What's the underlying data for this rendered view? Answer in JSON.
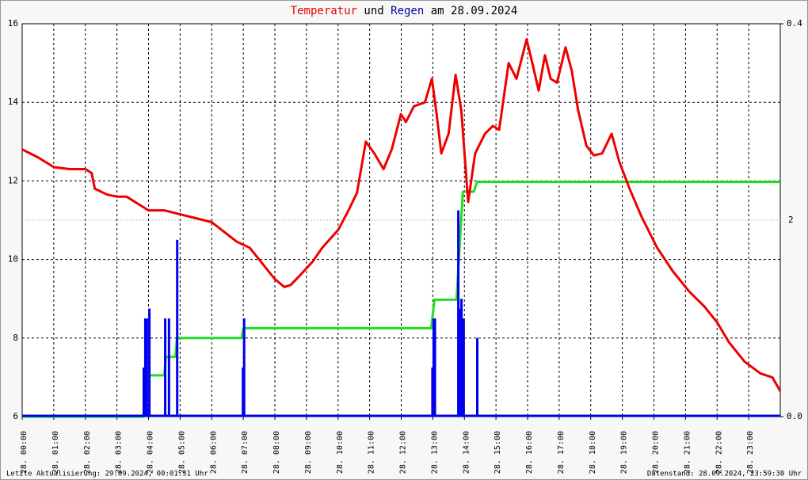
{
  "chart_data": {
    "type": "line",
    "title": [
      "Temperatur",
      "und",
      "Regen",
      "am 28.09.2024"
    ],
    "title_colors": [
      "#ee0000",
      "#000000",
      "#000099",
      "#000000"
    ],
    "footer_left": "Letzte Aktualisierung: 29.09.2024, 00:01:31 Uhr",
    "footer_right": "Datenstand: 28.09.2024, 23:59:30 Uhr",
    "xlim": [
      0,
      24
    ],
    "xticks": [
      {
        "value": 0,
        "label": "28. 00:00"
      },
      {
        "value": 1,
        "label": "28. 01:00"
      },
      {
        "value": 2,
        "label": "28. 02:00"
      },
      {
        "value": 3,
        "label": "28. 03:00"
      },
      {
        "value": 4,
        "label": "28. 04:00"
      },
      {
        "value": 5,
        "label": "28. 05:00"
      },
      {
        "value": 6,
        "label": "28. 06:00"
      },
      {
        "value": 7,
        "label": "28. 07:00"
      },
      {
        "value": 8,
        "label": "28. 08:00"
      },
      {
        "value": 9,
        "label": "28. 09:00"
      },
      {
        "value": 10,
        "label": "28. 10:00"
      },
      {
        "value": 11,
        "label": "28. 11:00"
      },
      {
        "value": 12,
        "label": "28. 12:00"
      },
      {
        "value": 13,
        "label": "28. 13:00"
      },
      {
        "value": 14,
        "label": "28. 14:00"
      },
      {
        "value": 15,
        "label": "28. 15:00"
      },
      {
        "value": 16,
        "label": "28. 16:00"
      },
      {
        "value": 17,
        "label": "28. 17:00"
      },
      {
        "value": 18,
        "label": "28. 18:00"
      },
      {
        "value": 19,
        "label": "28. 19:00"
      },
      {
        "value": 20,
        "label": "28. 20:00"
      },
      {
        "value": 21,
        "label": "28. 21:00"
      },
      {
        "value": 22,
        "label": "28. 22:00"
      },
      {
        "value": 23,
        "label": "28. 23:00"
      }
    ],
    "ylim": [
      6,
      16
    ],
    "yticks": [
      6,
      8,
      10,
      12,
      14,
      16
    ],
    "y2lim": [
      0,
      0.4
    ],
    "y2ticks": [
      {
        "value": 0,
        "label": "0.0"
      },
      {
        "value": 0.4,
        "label": "0.4"
      }
    ],
    "y3lim": [
      0,
      4
    ],
    "y3ticks": [
      2
    ],
    "y3color": "#22dd22",
    "grid": true,
    "series": [
      {
        "type": "line",
        "axis": "y",
        "color": "#ee0000",
        "x": [
          0,
          0.5,
          1,
          1.5,
          2,
          2.2,
          2.3,
          2.7,
          3,
          3.3,
          3.5,
          3.8,
          4,
          4.5,
          5,
          5.5,
          6,
          6.4,
          6.8,
          7.2,
          7.5,
          7.8,
          8,
          8.3,
          8.5,
          8.8,
          9.2,
          9.5,
          10,
          10.3,
          10.6,
          10.88,
          11.15,
          11.44,
          11.7,
          11.99,
          12.15,
          12.4,
          12.75,
          12.97,
          13.12,
          13.27,
          13.5,
          13.72,
          13.9,
          14.12,
          14.34,
          14.65,
          14.9,
          15.1,
          15.4,
          15.65,
          15.97,
          16.15,
          16.35,
          16.55,
          16.73,
          16.93,
          17.2,
          17.4,
          17.6,
          17.86,
          18.1,
          18.36,
          18.66,
          18.9,
          19.23,
          19.6,
          20.1,
          20.6,
          21.1,
          21.6,
          22,
          22.37,
          22.87,
          23.37,
          23.75,
          24
        ],
        "values": [
          12.8,
          12.6,
          12.35,
          12.3,
          12.3,
          12.2,
          11.8,
          11.65,
          11.6,
          11.6,
          11.5,
          11.35,
          11.25,
          11.25,
          11.15,
          11.05,
          10.95,
          10.7,
          10.45,
          10.3,
          10,
          9.7,
          9.5,
          9.3,
          9.35,
          9.6,
          9.95,
          10.3,
          10.75,
          11.2,
          11.7,
          13.0,
          12.7,
          12.3,
          12.8,
          13.7,
          13.5,
          13.9,
          14.0,
          14.6,
          13.7,
          12.7,
          13.2,
          14.7,
          13.8,
          11.46,
          12.7,
          13.2,
          13.4,
          13.3,
          15.0,
          14.6,
          15.6,
          15.0,
          14.3,
          15.2,
          14.6,
          14.5,
          15.4,
          14.8,
          13.8,
          12.9,
          12.65,
          12.7,
          13.2,
          12.5,
          11.8,
          11.1,
          10.3,
          9.7,
          9.2,
          8.8,
          8.4,
          7.9,
          7.4,
          7.1,
          7.0,
          6.65
        ]
      },
      {
        "type": "bar",
        "axis": "y2",
        "color": "#0000ee",
        "x": [
          3.81,
          3.86,
          3.91,
          3.99,
          4.49,
          4.61,
          4.87,
          6.95,
          6.99,
          12.95,
          12.99,
          13.03,
          13.77,
          13.82,
          13.87,
          13.94,
          14.37
        ],
        "values": [
          0.05,
          0.1,
          0.1,
          0.11,
          0.1,
          0.1,
          0.18,
          0.05,
          0.1,
          0.05,
          0.1,
          0.1,
          0.21,
          0.11,
          0.12,
          0.1,
          0.08
        ]
      },
      {
        "type": "line",
        "axis": "y3",
        "color": "#22dd22",
        "x": [
          0,
          3.85,
          3.85,
          4.5,
          4.55,
          4.85,
          4.9,
          6.95,
          7.0,
          12.95,
          13.05,
          13.75,
          13.95,
          14.3,
          14.4,
          24
        ],
        "values": [
          0,
          0,
          0.42,
          0.42,
          0.61,
          0.61,
          0.8,
          0.8,
          0.9,
          0.9,
          1.19,
          1.19,
          2.29,
          2.29,
          2.39,
          2.39
        ]
      }
    ]
  }
}
